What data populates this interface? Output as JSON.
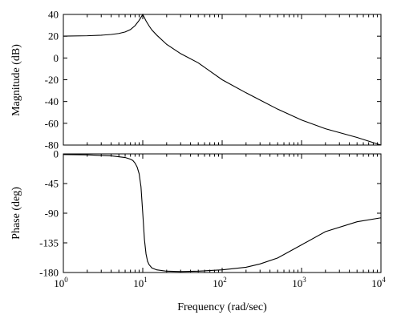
{
  "chart_data": [
    {
      "type": "line",
      "ylabel": "Magnitude (dB)",
      "xscale": "log",
      "xlim": [
        1,
        10000
      ],
      "ylim": [
        -80,
        40
      ],
      "yticks": [
        "40",
        "20",
        "0",
        "-20",
        "-40",
        "-60",
        "-80"
      ],
      "ytick_values": [
        40,
        20,
        0,
        -20,
        -40,
        -60,
        -80
      ],
      "grid": false,
      "x": [
        1,
        2,
        3,
        4,
        5,
        6,
        7,
        8,
        9,
        10,
        11,
        12,
        13,
        15,
        20,
        30,
        50,
        100,
        200,
        500,
        1000,
        2000,
        5000,
        10000
      ],
      "y": [
        20.1,
        20.4,
        20.9,
        21.6,
        22.5,
        23.9,
        26.1,
        29.7,
        34.5,
        40,
        34,
        29.5,
        25.8,
        21,
        12.5,
        4,
        -4.5,
        -20,
        -32,
        -47,
        -57,
        -65,
        -73,
        -80
      ]
    },
    {
      "type": "line",
      "ylabel": "Phase (deg)",
      "xlabel": "Frequency (rad/sec)",
      "xscale": "log",
      "xlim": [
        1,
        10000
      ],
      "ylim": [
        -180,
        0
      ],
      "yticks": [
        "0",
        "-45",
        "-90",
        "-135",
        "-180"
      ],
      "ytick_values": [
        0,
        -45,
        -90,
        -135,
        -180
      ],
      "xticks": [
        {
          "base": "10",
          "exp": "0"
        },
        {
          "base": "10",
          "exp": "1"
        },
        {
          "base": "10",
          "exp": "2"
        },
        {
          "base": "10",
          "exp": "3"
        },
        {
          "base": "10",
          "exp": "4"
        }
      ],
      "xtick_values": [
        1,
        10,
        100,
        1000,
        10000
      ],
      "grid": false,
      "x": [
        1,
        2,
        4,
        6,
        7,
        7.5,
        8,
        8.5,
        9,
        9.5,
        10,
        10.5,
        11,
        11.5,
        12,
        13,
        15,
        20,
        30,
        50,
        100,
        200,
        300,
        500,
        1000,
        2000,
        5000,
        10000
      ],
      "y": [
        -1,
        -1.5,
        -3,
        -5.5,
        -8,
        -10,
        -14,
        -20,
        -30,
        -50,
        -90,
        -130,
        -152,
        -163,
        -168,
        -173,
        -176,
        -178,
        -178.5,
        -178,
        -176,
        -172,
        -167,
        -158,
        -138,
        -118,
        -103,
        -97
      ]
    }
  ]
}
